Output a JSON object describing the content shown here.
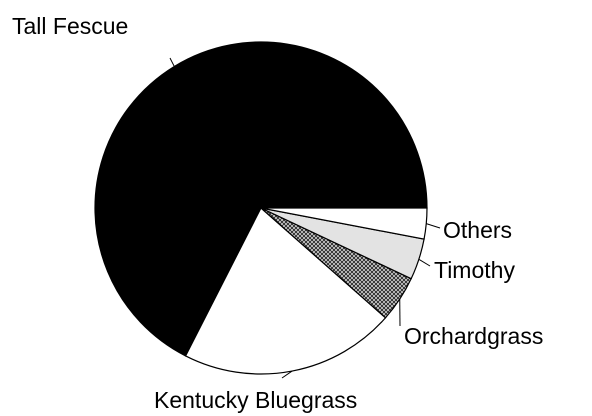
{
  "chart_data": {
    "type": "pie",
    "title": "",
    "categories": [
      "Tall Fescue",
      "Kentucky Bluegrass",
      "Orchardgrass",
      "Timothy",
      "Others"
    ],
    "values": [
      67.5,
      21.0,
      4.5,
      4.0,
      3.0
    ],
    "colors": [
      "#000000",
      "#ffffff",
      "#9a9a9a",
      "#e3e3e3",
      "#ffffff"
    ],
    "patterns": [
      "solid",
      "solid",
      "crosshatch",
      "solid",
      "solid"
    ],
    "legend": "none"
  }
}
